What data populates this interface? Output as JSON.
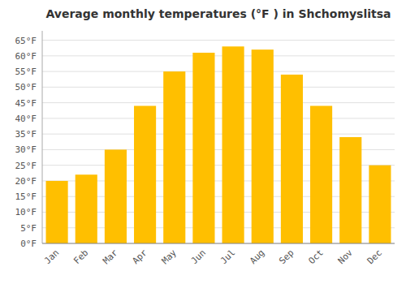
{
  "chart_data": {
    "type": "bar",
    "title": "Average monthly temperatures (°F ) in Shchomyslitsa",
    "categories": [
      "Jan",
      "Feb",
      "Mar",
      "Apr",
      "May",
      "Jun",
      "Jul",
      "Aug",
      "Sep",
      "Oct",
      "Nov",
      "Dec"
    ],
    "values": [
      20,
      22,
      30,
      44,
      55,
      61,
      63,
      62,
      54,
      44,
      34,
      25
    ],
    "color": "#FFBF00",
    "ylim": [
      0,
      68
    ],
    "yticks": [
      {
        "value": 0,
        "label": "0°F"
      },
      {
        "value": 5,
        "label": "5°F"
      },
      {
        "value": 10,
        "label": "10°F"
      },
      {
        "value": 15,
        "label": "15°F"
      },
      {
        "value": 20,
        "label": "20°F"
      },
      {
        "value": 25,
        "label": "25°F"
      },
      {
        "value": 30,
        "label": "30°F"
      },
      {
        "value": 35,
        "label": "35°F"
      },
      {
        "value": 40,
        "label": "40°F"
      },
      {
        "value": 45,
        "label": "45°F"
      },
      {
        "value": 50,
        "label": "50°F"
      },
      {
        "value": 55,
        "label": "55°F"
      },
      {
        "value": 60,
        "label": "60°F"
      },
      {
        "value": 65,
        "label": "65°F"
      }
    ],
    "grid": true
  }
}
